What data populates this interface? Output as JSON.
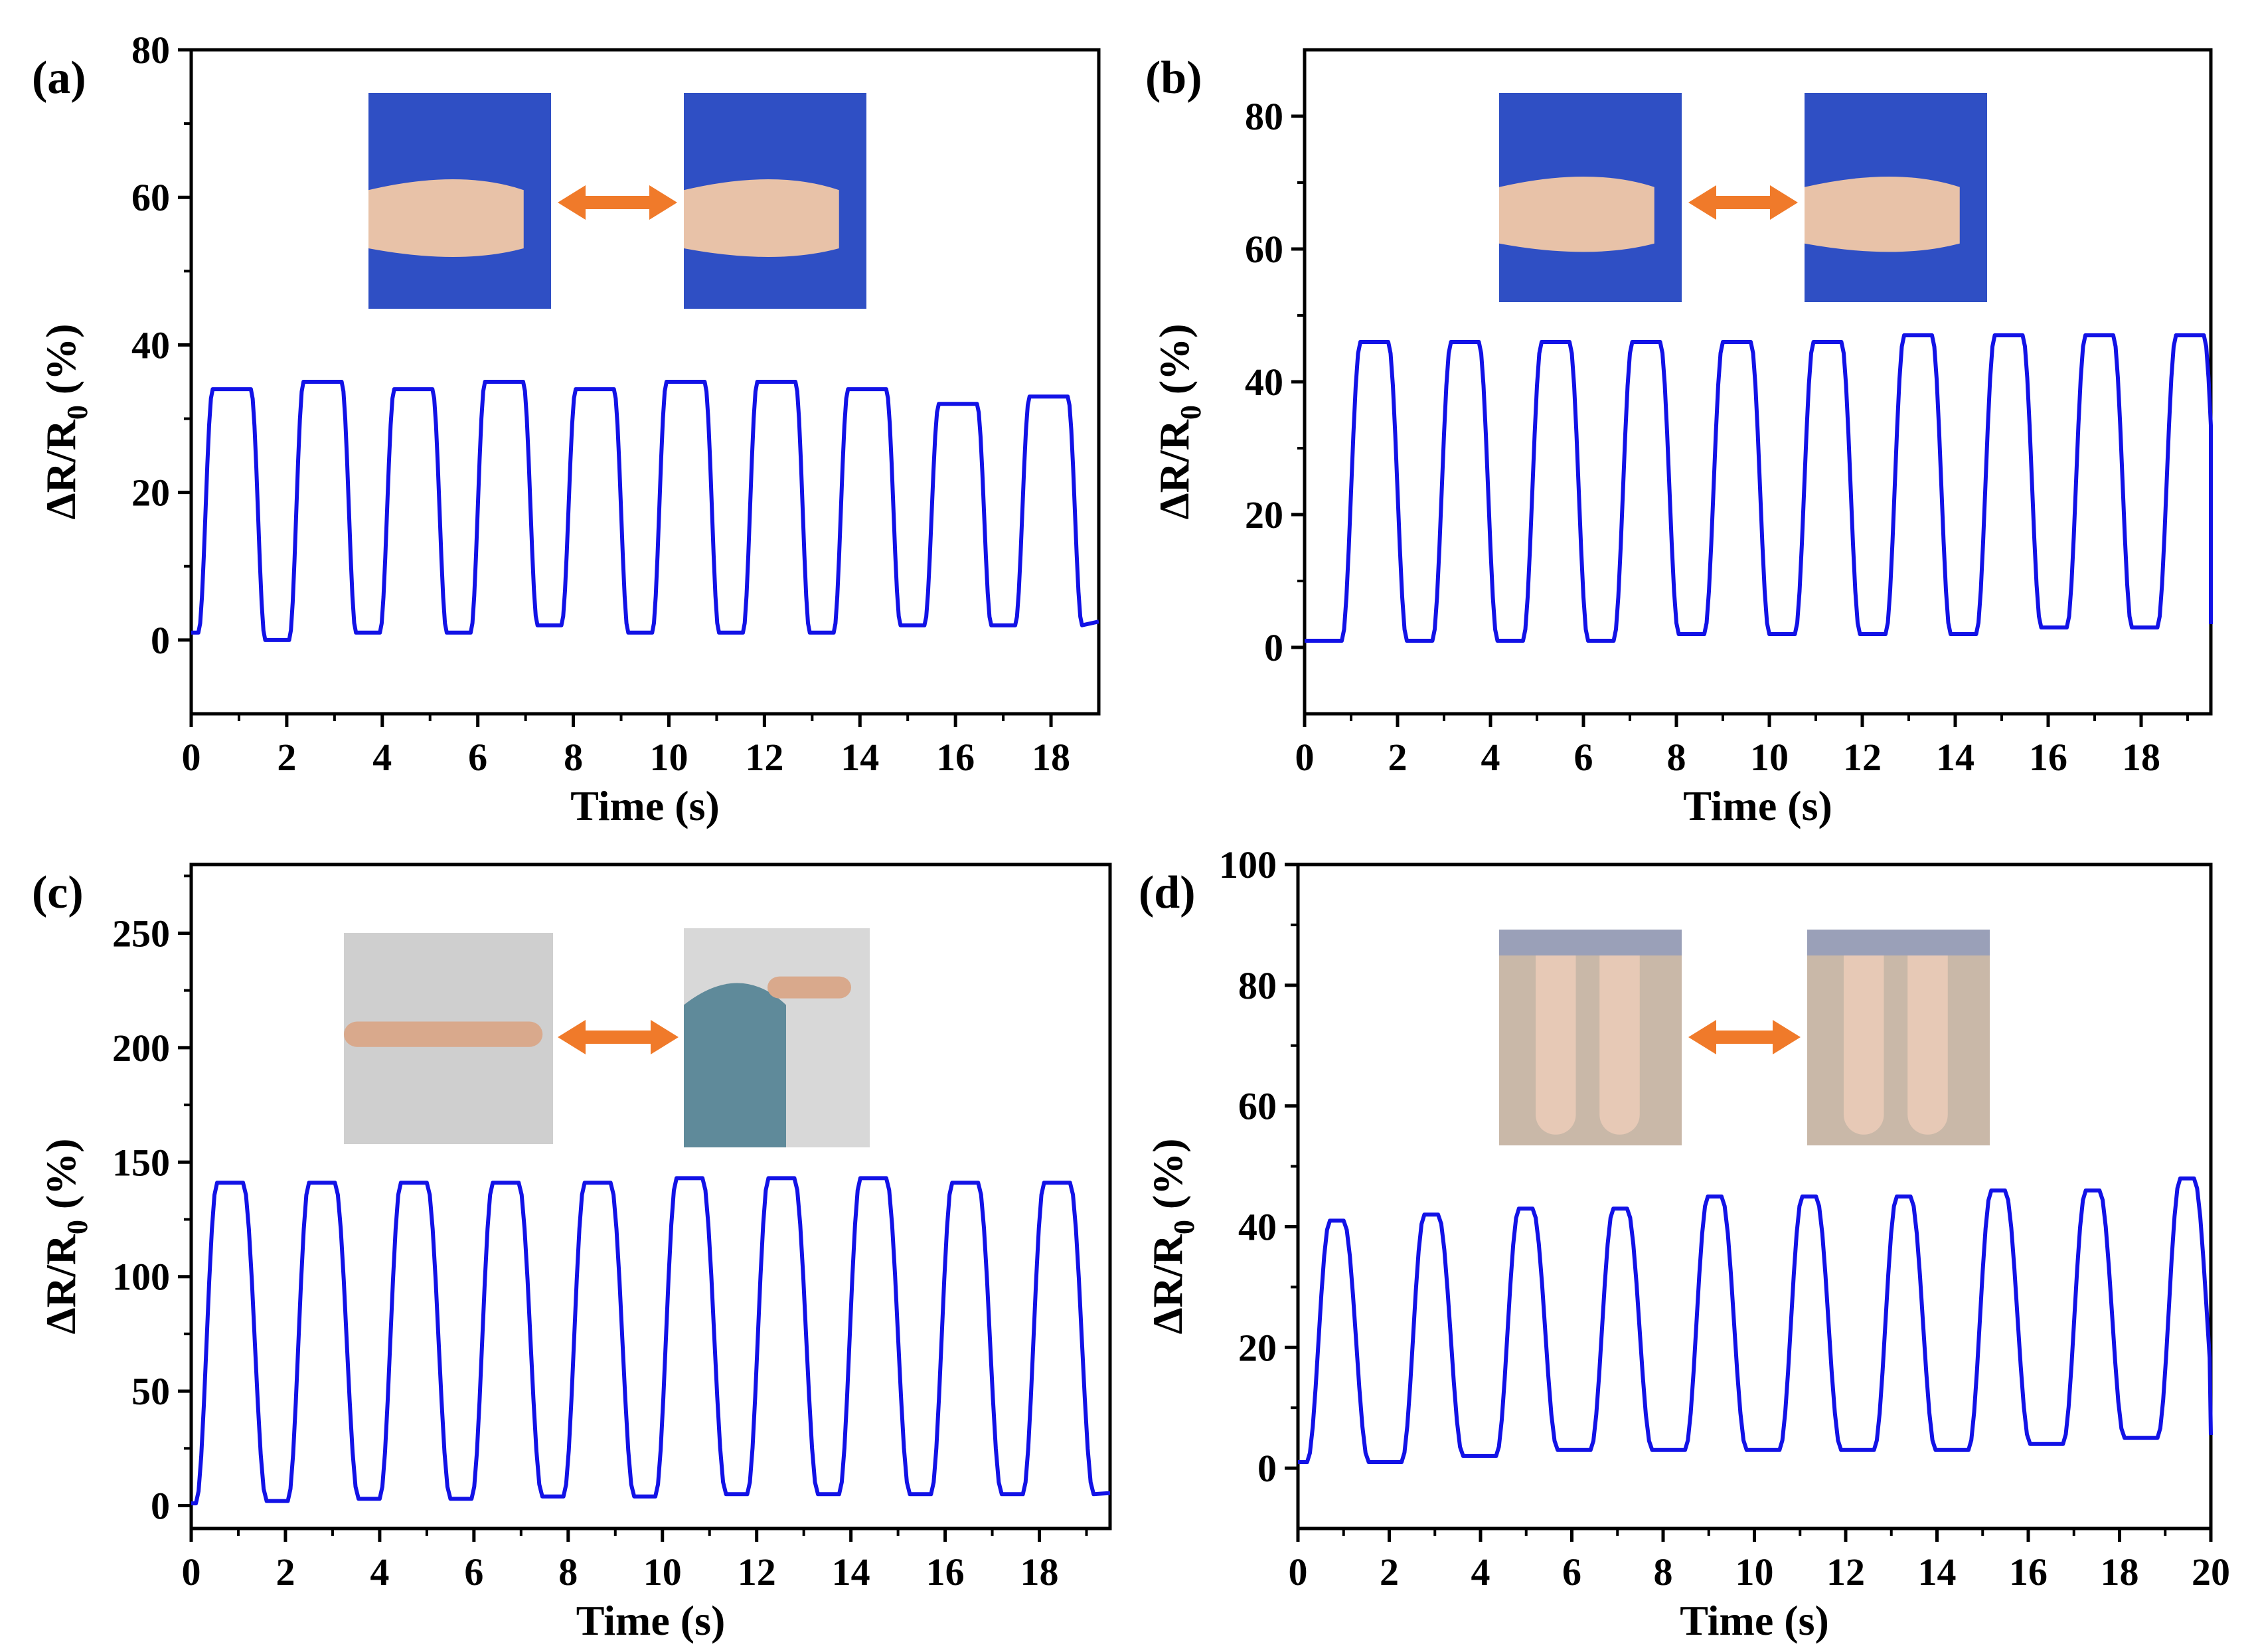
{
  "chart_data": [
    {
      "panel_label": "(a)",
      "type": "line",
      "xlabel": "Time (s)",
      "ylabel": "ΔR/R0 (%)",
      "xlim": [
        0,
        19
      ],
      "ylim": [
        -10,
        80
      ],
      "xticks": [
        0,
        2,
        4,
        6,
        8,
        10,
        12,
        14,
        16,
        18
      ],
      "yticks": [
        0,
        20,
        40,
        60,
        80
      ],
      "series": [
        {
          "period_s": 1.9,
          "first_rise_s": 0.15,
          "rise_s": 0.3,
          "fall_s": 0.3,
          "high_duration_s": 0.8,
          "peak_values": [
            34,
            35,
            34,
            35,
            34,
            35,
            35,
            34,
            32,
            33
          ],
          "baseline_values": [
            1,
            0,
            1,
            1,
            2,
            1,
            1,
            1,
            2,
            2
          ]
        }
      ],
      "insets": [
        {
          "description": "bent wrist",
          "color": "#2f4fc4"
        },
        {
          "description": "straight wrist",
          "color": "#2f4fc4"
        }
      ]
    },
    {
      "panel_label": "(b)",
      "type": "line",
      "xlabel": "Time (s)",
      "ylabel": "ΔR/R0 (%)",
      "xlim": [
        0,
        19.5
      ],
      "ylim": [
        -10,
        90
      ],
      "xticks": [
        0,
        2,
        4,
        6,
        8,
        10,
        12,
        14,
        16,
        18
      ],
      "yticks": [
        0,
        20,
        40,
        60,
        80
      ],
      "series": [
        {
          "period_s": 1.95,
          "first_rise_s": 0.8,
          "rise_s": 0.4,
          "fall_s": 0.4,
          "high_duration_s": 0.6,
          "peak_values": [
            46,
            46,
            46,
            46,
            46,
            46,
            47,
            47,
            47,
            47
          ],
          "baseline_values": [
            1,
            1,
            1,
            1,
            2,
            2,
            2,
            2,
            3,
            3
          ]
        }
      ],
      "insets": [
        {
          "description": "straight finger",
          "color": "#2f4fc4"
        },
        {
          "description": "bent finger",
          "color": "#2f4fc4"
        }
      ]
    },
    {
      "panel_label": "(c)",
      "type": "line",
      "xlabel": "Time (s)",
      "ylabel": "ΔR/R0 (%)",
      "xlim": [
        0,
        19.5
      ],
      "ylim": [
        -10,
        280
      ],
      "xticks": [
        0,
        2,
        4,
        6,
        8,
        10,
        12,
        14,
        16,
        18
      ],
      "yticks": [
        0,
        50,
        100,
        150,
        200,
        250
      ],
      "series": [
        {
          "period_s": 1.95,
          "first_rise_s": 0.1,
          "rise_s": 0.45,
          "fall_s": 0.5,
          "high_duration_s": 0.55,
          "peak_values": [
            141,
            141,
            141,
            141,
            141,
            143,
            143,
            143,
            141,
            141
          ],
          "baseline_values": [
            1,
            2,
            3,
            3,
            4,
            4,
            5,
            5,
            5,
            5
          ]
        }
      ],
      "insets": [
        {
          "description": "straight arm",
          "color": "#cfcfcf"
        },
        {
          "description": "bent elbow",
          "color": "#d8d8d8"
        }
      ]
    },
    {
      "panel_label": "(d)",
      "type": "line",
      "xlabel": "Time (s)",
      "ylabel": "ΔR/R0 (%)",
      "xlim": [
        0,
        20
      ],
      "ylim": [
        -10,
        100
      ],
      "xticks": [
        0,
        2,
        4,
        6,
        8,
        10,
        12,
        14,
        16,
        18,
        20
      ],
      "yticks": [
        0,
        20,
        40,
        60,
        80,
        100
      ],
      "series": [
        {
          "period_s": 2.07,
          "first_rise_s": 0.2,
          "rise_s": 0.5,
          "fall_s": 0.55,
          "high_duration_s": 0.3,
          "peak_values": [
            41,
            42,
            43,
            43,
            45,
            45,
            45,
            46,
            46,
            48
          ],
          "baseline_values": [
            1,
            1,
            2,
            3,
            3,
            3,
            3,
            3,
            4,
            5
          ]
        }
      ],
      "insets": [
        {
          "description": "straight legs",
          "color": "#c9b8a8"
        },
        {
          "description": "bent knee",
          "color": "#c9b8a8"
        }
      ]
    }
  ],
  "colors": {
    "line": "#1212e6",
    "arrow": "#f07a2a",
    "sky_blue_bg": "#2f4fc4"
  }
}
